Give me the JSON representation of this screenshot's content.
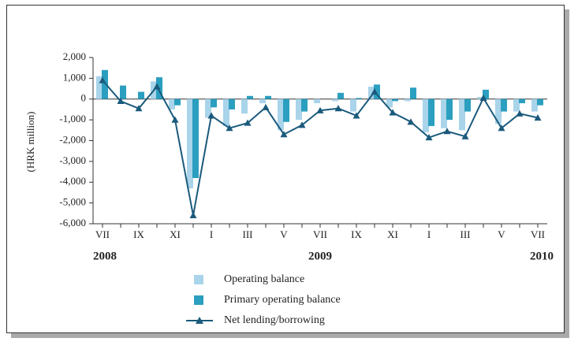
{
  "chart_data": {
    "type": "bar_line",
    "y_axis_label": "(HRK million)",
    "categories": [
      "VII",
      null,
      "IX",
      null,
      "XI",
      null,
      "I",
      null,
      "III",
      null,
      "V",
      null,
      "VII",
      null,
      "IX",
      null,
      "XI",
      null,
      "I",
      null,
      "III",
      null,
      "V",
      null,
      "VII"
    ],
    "years": [
      "2008",
      "2009",
      "2010"
    ],
    "series": [
      {
        "name": "Operating balance",
        "color": "#a9d4ea",
        "kind": "bar",
        "values": [
          1100,
          0,
          0,
          850,
          -500,
          -4300,
          -900,
          -1300,
          -700,
          -200,
          -1500,
          -1000,
          -200,
          -100,
          -600,
          600,
          -400,
          -100,
          -1600,
          -1400,
          -1500,
          100,
          -1200,
          -600,
          -600
        ]
      },
      {
        "name": "Primary operating balance",
        "color": "#2b9fbf",
        "kind": "bar",
        "values": [
          1400,
          650,
          350,
          1050,
          -300,
          -3800,
          -400,
          -500,
          150,
          150,
          -1100,
          -600,
          0,
          300,
          50,
          700,
          -100,
          550,
          -1300,
          -1000,
          -600,
          450,
          -600,
          -200,
          -300
        ]
      },
      {
        "name": "Net lending/borrowing",
        "color": "#1a5a7c",
        "kind": "line",
        "values": [
          900,
          -100,
          -450,
          600,
          -1000,
          -5600,
          -800,
          -1400,
          -1150,
          -400,
          -1700,
          -1250,
          -550,
          -450,
          -800,
          350,
          -650,
          -1100,
          -1850,
          -1550,
          -1800,
          50,
          -1400,
          -700,
          -900
        ]
      }
    ],
    "ylim": [
      -6000,
      2000
    ],
    "yticks": [
      {
        "value": 2000,
        "label": "2,000"
      },
      {
        "value": 1000,
        "label": "1,000"
      },
      0,
      {
        "value": -1000,
        "label": "-1,000"
      },
      {
        "value": -2000,
        "label": "-2,000"
      },
      {
        "value": -3000,
        "label": "-3,000"
      },
      {
        "value": -4000,
        "label": "-4,000"
      },
      {
        "value": -5000,
        "label": "-5,000"
      },
      {
        "value": -6000,
        "label": "-6,000"
      }
    ]
  }
}
